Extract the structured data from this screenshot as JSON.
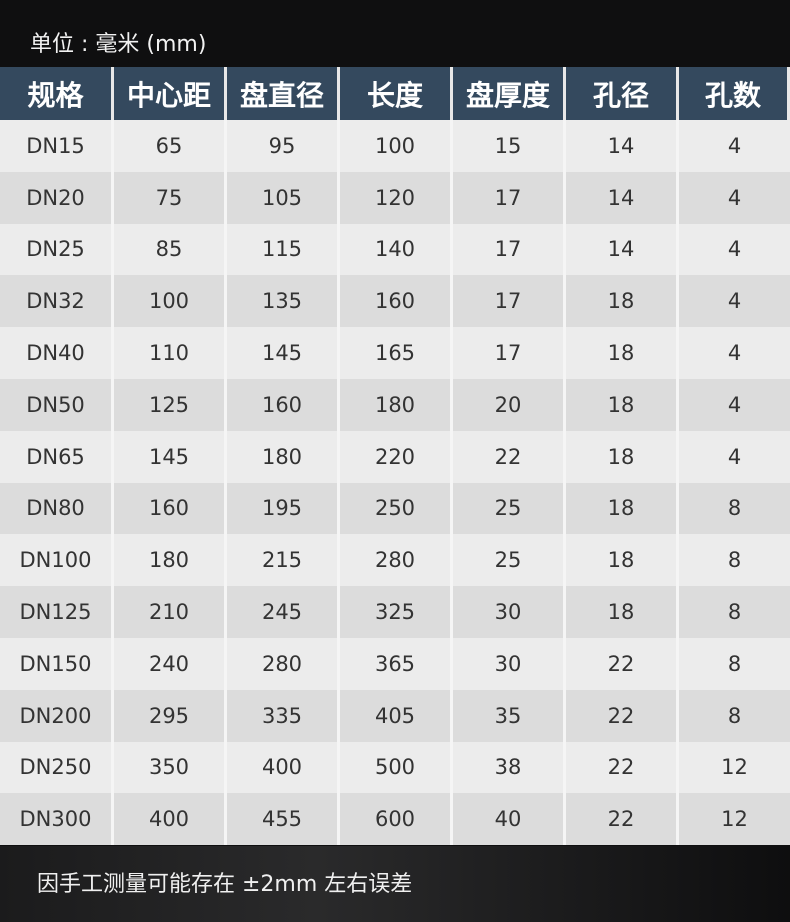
{
  "unit_label": "单位 : 毫米 (mm)",
  "table": {
    "headers": [
      "规格",
      "中心距",
      "盘直径",
      "长度",
      "盘厚度",
      "孔径",
      "孔数"
    ],
    "rows": [
      [
        "DN15",
        "65",
        "95",
        "100",
        "15",
        "14",
        "4"
      ],
      [
        "DN20",
        "75",
        "105",
        "120",
        "17",
        "14",
        "4"
      ],
      [
        "DN25",
        "85",
        "115",
        "140",
        "17",
        "14",
        "4"
      ],
      [
        "DN32",
        "100",
        "135",
        "160",
        "17",
        "18",
        "4"
      ],
      [
        "DN40",
        "110",
        "145",
        "165",
        "17",
        "18",
        "4"
      ],
      [
        "DN50",
        "125",
        "160",
        "180",
        "20",
        "18",
        "4"
      ],
      [
        "DN65",
        "145",
        "180",
        "220",
        "22",
        "18",
        "4"
      ],
      [
        "DN80",
        "160",
        "195",
        "250",
        "25",
        "18",
        "8"
      ],
      [
        "DN100",
        "180",
        "215",
        "280",
        "25",
        "18",
        "8"
      ],
      [
        "DN125",
        "210",
        "245",
        "325",
        "30",
        "18",
        "8"
      ],
      [
        "DN150",
        "240",
        "280",
        "365",
        "30",
        "22",
        "8"
      ],
      [
        "DN200",
        "295",
        "335",
        "405",
        "35",
        "22",
        "8"
      ],
      [
        "DN250",
        "350",
        "400",
        "500",
        "38",
        "22",
        "12"
      ],
      [
        "DN300",
        "400",
        "455",
        "600",
        "40",
        "22",
        "12"
      ]
    ]
  },
  "note": "因手工测量可能存在 ±2mm 左右误差",
  "colors": {
    "header_bg": "#34495e",
    "row_light": "#ececec",
    "row_dark": "#dcdcdc",
    "page_bg": "#0f0f10"
  }
}
